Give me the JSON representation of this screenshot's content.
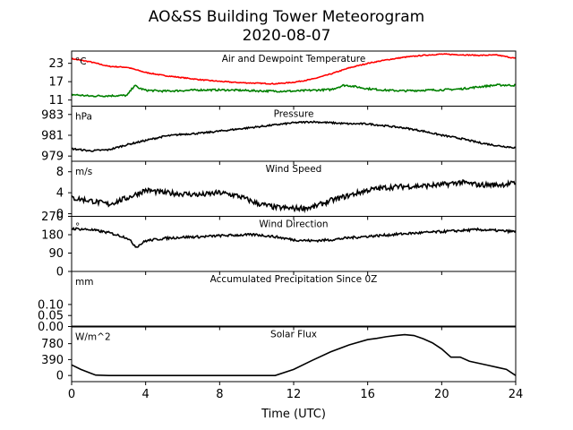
{
  "figure": {
    "title_line1": "AO&SS Building Tower Meteorogram",
    "title_line2": "2020-08-07",
    "xlabel": "Time (UTC)"
  },
  "chart_data": {
    "type": "line",
    "x_axis": {
      "range": [
        0,
        24
      ],
      "ticks": [
        0,
        4,
        8,
        12,
        16,
        20,
        24
      ],
      "tick_labels": [
        "0",
        "4",
        "8",
        "12",
        "16",
        "20",
        "24"
      ],
      "label": "Time (UTC)"
    },
    "grid": false,
    "panels": [
      {
        "id": "temperature",
        "title": "Air and Dewpoint Temperature",
        "unit": "°C",
        "ylim": [
          9,
          27
        ],
        "yticks": [
          11,
          17,
          23
        ],
        "ytick_labels": [
          "11",
          "17",
          "23"
        ],
        "series": [
          {
            "color": "#ff0000",
            "noise": 0.15,
            "x": [
              0,
              1,
              2,
              3,
              4,
              5,
              6,
              7,
              8,
              9,
              10,
              11,
              12,
              13,
              14,
              15,
              16,
              17,
              18,
              19,
              20,
              21,
              22,
              23,
              24
            ],
            "y": [
              24.5,
              23.5,
              22,
              21.7,
              20,
              19,
              18.3,
              17.6,
              17.1,
              16.7,
              16.5,
              16.3,
              16.8,
              17.8,
              19.5,
              21.5,
              23,
              24.1,
              25,
              25.6,
              26,
              25.8,
              25.6,
              25.7,
              24.6
            ]
          },
          {
            "color": "#008000",
            "noise": 0.3,
            "x": [
              0,
              1,
              2,
              3,
              3.4,
              3.6,
              4,
              5,
              6,
              7,
              8,
              9,
              10,
              11,
              12,
              13,
              14,
              14.7,
              15,
              16,
              17,
              18,
              19,
              20,
              21,
              22,
              23,
              24
            ],
            "y": [
              12.8,
              12.3,
              12.4,
              12.5,
              15.8,
              15,
              14.2,
              13.9,
              14.1,
              14.3,
              14.3,
              14.2,
              14.0,
              13.9,
              13.9,
              14.2,
              14.4,
              15.8,
              15.7,
              14.7,
              14.2,
              14.0,
              14.2,
              14.3,
              14.6,
              15.3,
              15.9,
              15.8
            ]
          }
        ]
      },
      {
        "id": "pressure",
        "title": "Pressure",
        "unit": "hPa",
        "ylim": [
          978.5,
          983.8
        ],
        "yticks": [
          979,
          981,
          983
        ],
        "ytick_labels": [
          "979",
          "981",
          "983"
        ],
        "series": [
          {
            "color": "#000000",
            "noise": 0.08,
            "x": [
              0,
              1,
              2,
              3,
              4,
              5,
              6,
              7,
              8,
              9,
              10,
              11,
              12,
              13,
              14,
              15,
              16,
              17,
              18,
              19,
              20,
              21,
              22,
              23,
              24
            ],
            "y": [
              979.7,
              979.5,
              979.6,
              980.1,
              980.5,
              980.9,
              981.1,
              981.2,
              981.4,
              981.6,
              981.8,
              982,
              982.2,
              982.3,
              982.2,
              982.1,
              982.1,
              981.9,
              981.7,
              981.4,
              981.0,
              980.7,
              980.3,
              980.0,
              979.8
            ]
          }
        ]
      },
      {
        "id": "wind_speed",
        "title": "Wind Speed",
        "unit": "m/s",
        "ylim": [
          -0.5,
          10
        ],
        "yticks": [
          0,
          4,
          8
        ],
        "ytick_labels": [
          "0",
          "4",
          "8"
        ],
        "series": [
          {
            "color": "#000000",
            "noise": 0.5,
            "x": [
              0,
              1,
              2,
              3,
              4,
              5,
              6,
              7,
              8,
              9,
              10,
              11,
              12,
              13,
              14,
              15,
              16,
              17,
              18,
              19,
              20,
              21,
              22,
              23,
              24
            ],
            "y": [
              3,
              2.5,
              1.8,
              3,
              4.5,
              4,
              3.8,
              3.6,
              4,
              3.4,
              2,
              1.2,
              1,
              1.2,
              2.5,
              3.5,
              4.5,
              5,
              5.2,
              5.3,
              5.5,
              6,
              5.5,
              5.5,
              5.8
            ]
          }
        ]
      },
      {
        "id": "wind_direction",
        "title": "Wind Direction",
        "unit": "°",
        "ylim": [
          0,
          270
        ],
        "yticks": [
          0,
          90,
          180,
          270
        ],
        "ytick_labels": [
          "0",
          "90",
          "180",
          "270"
        ],
        "series": [
          {
            "color": "#000000",
            "noise": 6,
            "x": [
              0,
              1,
              2,
              3,
              3.5,
              4,
              5,
              6,
              7,
              8,
              9,
              10,
              11,
              12,
              13,
              14,
              15,
              16,
              17,
              18,
              19,
              20,
              21,
              22,
              23,
              24
            ],
            "y": [
              210,
              205,
              190,
              165,
              120,
              150,
              162,
              168,
              170,
              175,
              178,
              180,
              170,
              155,
              150,
              155,
              165,
              172,
              178,
              185,
              190,
              195,
              200,
              205,
              200,
              195
            ]
          }
        ]
      },
      {
        "id": "precipitation",
        "title": "Accumulated Precipitation Since 0Z",
        "unit": "mm",
        "ylim": [
          0,
          0.25
        ],
        "yticks": [
          0.0,
          0.05,
          0.1
        ],
        "ytick_labels": [
          "0.00",
          "0.05",
          "0.10"
        ],
        "series": [
          {
            "color": "#000000",
            "noise": 0,
            "x": [
              0,
              24
            ],
            "y": [
              0,
              0
            ]
          }
        ]
      },
      {
        "id": "solar_flux",
        "title": "Solar Flux",
        "unit": "W/m^2",
        "ylim": [
          -150,
          1200
        ],
        "yticks": [
          0,
          390,
          780
        ],
        "ytick_labels": [
          "0",
          "390",
          "780"
        ],
        "series": [
          {
            "color": "#000000",
            "noise": 0,
            "x": [
              0,
              0.5,
              1,
              1.3,
              2,
              4,
              6,
              8,
              10,
              11,
              12,
              13,
              14,
              15,
              16,
              16.5,
              17,
              17.5,
              18,
              18.5,
              19,
              19.5,
              20,
              20.5,
              21,
              21.5,
              22,
              22.5,
              23,
              23.5,
              24
            ],
            "y": [
              260,
              150,
              60,
              10,
              0,
              0,
              0,
              0,
              0,
              0,
              150,
              370,
              580,
              750,
              880,
              910,
              950,
              980,
              1000,
              980,
              900,
              800,
              650,
              450,
              450,
              350,
              300,
              250,
              200,
              150,
              0
            ]
          }
        ]
      }
    ]
  }
}
